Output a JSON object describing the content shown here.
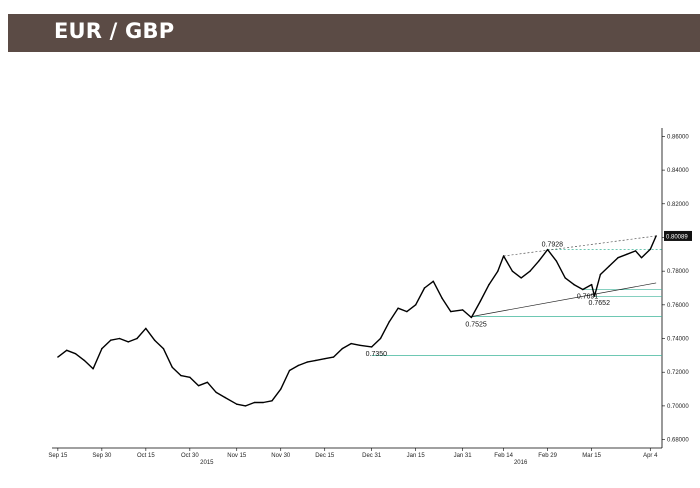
{
  "header": {
    "title": "EUR / GBP",
    "background": "#5b4b45"
  },
  "chart_data": {
    "type": "line",
    "title": "EUR / GBP",
    "xlabel": "",
    "ylabel": "",
    "x_ticks": [
      "Sep 15",
      "Sep 30",
      "Oct 15",
      "Oct 30",
      "Nov 15",
      "Nov 30",
      "Dec 15",
      "Dec 31",
      "Jan 15",
      "Jan 31",
      "Feb 14",
      "Feb 29",
      "Mar 15",
      "Apr 4"
    ],
    "year_labels": [
      {
        "label": "2015",
        "near_tick": "Oct 30"
      },
      {
        "label": "2016",
        "near_tick": "Feb 14"
      }
    ],
    "y_ticks": [
      "0.68000",
      "0.70000",
      "0.72000",
      "0.74000",
      "0.76000",
      "0.78000",
      "0.80000",
      "0.82000",
      "0.84000",
      "0.86000"
    ],
    "ylim": [
      0.675,
      0.865
    ],
    "y_axis_side": "right",
    "grid": false,
    "last_value_label": "0.80089",
    "series": [
      {
        "color": "#000000",
        "points": [
          [
            "Sep 15",
            0.729
          ],
          [
            "Sep 18",
            0.733
          ],
          [
            "Sep 21",
            0.731
          ],
          [
            "Sep 24",
            0.727
          ],
          [
            "Sep 27",
            0.722
          ],
          [
            "Sep 30",
            0.734
          ],
          [
            "Oct 3",
            0.739
          ],
          [
            "Oct 6",
            0.74
          ],
          [
            "Oct 9",
            0.738
          ],
          [
            "Oct 12",
            0.74
          ],
          [
            "Oct 15",
            0.746
          ],
          [
            "Oct 18",
            0.739
          ],
          [
            "Oct 21",
            0.734
          ],
          [
            "Oct 24",
            0.723
          ],
          [
            "Oct 27",
            0.718
          ],
          [
            "Oct 30",
            0.717
          ],
          [
            "Nov 2",
            0.712
          ],
          [
            "Nov 5",
            0.714
          ],
          [
            "Nov 8",
            0.708
          ],
          [
            "Nov 11",
            0.705
          ],
          [
            "Nov 15",
            0.701
          ],
          [
            "Nov 18",
            0.7
          ],
          [
            "Nov 21",
            0.702
          ],
          [
            "Nov 24",
            0.702
          ],
          [
            "Nov 27",
            0.703
          ],
          [
            "Nov 30",
            0.71
          ],
          [
            "Dec 3",
            0.721
          ],
          [
            "Dec 6",
            0.724
          ],
          [
            "Dec 9",
            0.726
          ],
          [
            "Dec 12",
            0.727
          ],
          [
            "Dec 15",
            0.728
          ],
          [
            "Dec 18",
            0.729
          ],
          [
            "Dec 21",
            0.734
          ],
          [
            "Dec 24",
            0.737
          ],
          [
            "Dec 27",
            0.736
          ],
          [
            "Dec 31",
            0.735
          ],
          [
            "Jan 3",
            0.74
          ],
          [
            "Jan 6",
            0.75
          ],
          [
            "Jan 9",
            0.758
          ],
          [
            "Jan 12",
            0.756
          ],
          [
            "Jan 15",
            0.76
          ],
          [
            "Jan 18",
            0.77
          ],
          [
            "Jan 21",
            0.774
          ],
          [
            "Jan 24",
            0.764
          ],
          [
            "Jan 27",
            0.756
          ],
          [
            "Jan 31",
            0.757
          ],
          [
            "Feb 3",
            0.7525
          ],
          [
            "Feb 6",
            0.762
          ],
          [
            "Feb 9",
            0.772
          ],
          [
            "Feb 12",
            0.78
          ],
          [
            "Feb 14",
            0.789
          ],
          [
            "Feb 17",
            0.78
          ],
          [
            "Feb 20",
            0.776
          ],
          [
            "Feb 23",
            0.78
          ],
          [
            "Feb 26",
            0.786
          ],
          [
            "Feb 29",
            0.7928
          ],
          [
            "Mar 3",
            0.786
          ],
          [
            "Mar 6",
            0.776
          ],
          [
            "Mar 9",
            0.772
          ],
          [
            "Mar 12",
            0.7691
          ],
          [
            "Mar 15",
            0.772
          ],
          [
            "Mar 16",
            0.7652
          ],
          [
            "Mar 18",
            0.778
          ],
          [
            "Mar 21",
            0.783
          ],
          [
            "Mar 24",
            0.788
          ],
          [
            "Mar 27",
            0.79
          ],
          [
            "Mar 30",
            0.792
          ],
          [
            "Apr 1",
            0.788
          ],
          [
            "Apr 4",
            0.793
          ],
          [
            "Apr 6",
            0.8009
          ]
        ]
      }
    ],
    "annotations": [
      {
        "label": "0.7350",
        "x": "Dec 31",
        "y": 0.735
      },
      {
        "label": "0.7525",
        "x": "Feb 3",
        "y": 0.7525
      },
      {
        "label": "0.7928",
        "x": "Feb 29",
        "y": 0.7928
      },
      {
        "label": "0.7691",
        "x": "Mar 12",
        "y": 0.7691
      },
      {
        "label": "0.7652",
        "x": "Mar 16",
        "y": 0.7652
      }
    ],
    "support_lines": [
      {
        "y": 0.73,
        "from": "Dec 31",
        "color": "#3fb59a"
      },
      {
        "y": 0.753,
        "from": "Feb 3",
        "color": "#3fb59a"
      },
      {
        "y": 0.765,
        "from": "Mar 16",
        "color": "#3fb59a"
      },
      {
        "y": 0.769,
        "from": "Mar 12",
        "color": "#3fb59a"
      },
      {
        "y": 0.7928,
        "from": "Feb 29",
        "color": "#3fb59a",
        "dashed": true
      }
    ],
    "trend_lines": [
      {
        "from": [
          "Feb 3",
          0.753
        ],
        "to": [
          "Apr 6",
          0.773
        ],
        "color": "#222222"
      },
      {
        "from": [
          "Feb 14",
          0.789
        ],
        "to": [
          "Apr 6",
          0.8009
        ],
        "color": "#555555",
        "dashed": true
      }
    ]
  }
}
